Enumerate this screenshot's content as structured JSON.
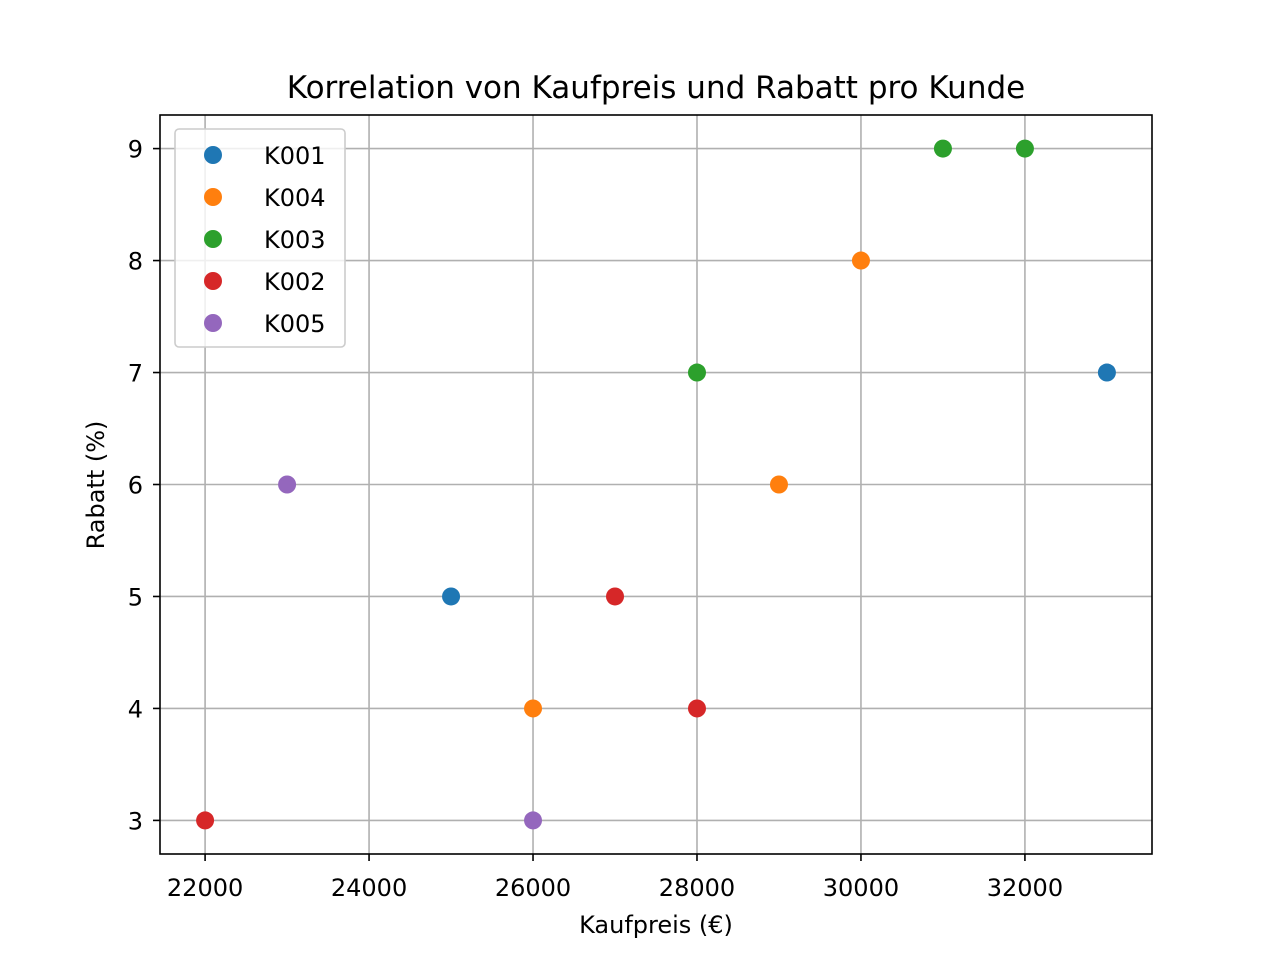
{
  "chart_data": {
    "type": "scatter",
    "title": "Korrelation von Kaufpreis und Rabatt pro Kunde",
    "xlabel": "Kaufpreis (€)",
    "ylabel": "Rabatt (%)",
    "xlim": [
      21450,
      33550
    ],
    "ylim": [
      2.7,
      9.3
    ],
    "xticks": [
      22000,
      24000,
      26000,
      28000,
      30000,
      32000
    ],
    "yticks": [
      3,
      4,
      5,
      6,
      7,
      8,
      9
    ],
    "grid": true,
    "legend_position": "top-left",
    "series": [
      {
        "name": "K001",
        "color": "#1f77b4",
        "points": [
          [
            25000,
            5
          ],
          [
            33000,
            7
          ]
        ]
      },
      {
        "name": "K004",
        "color": "#ff7f0e",
        "points": [
          [
            26000,
            4
          ],
          [
            29000,
            6
          ],
          [
            30000,
            8
          ]
        ]
      },
      {
        "name": "K003",
        "color": "#2ca02c",
        "points": [
          [
            28000,
            7
          ],
          [
            31000,
            9
          ],
          [
            32000,
            9
          ]
        ]
      },
      {
        "name": "K002",
        "color": "#d62728",
        "points": [
          [
            22000,
            3
          ],
          [
            27000,
            5
          ],
          [
            28000,
            4
          ]
        ]
      },
      {
        "name": "K005",
        "color": "#9467bd",
        "points": [
          [
            23000,
            6
          ],
          [
            26000,
            3
          ]
        ]
      }
    ]
  }
}
